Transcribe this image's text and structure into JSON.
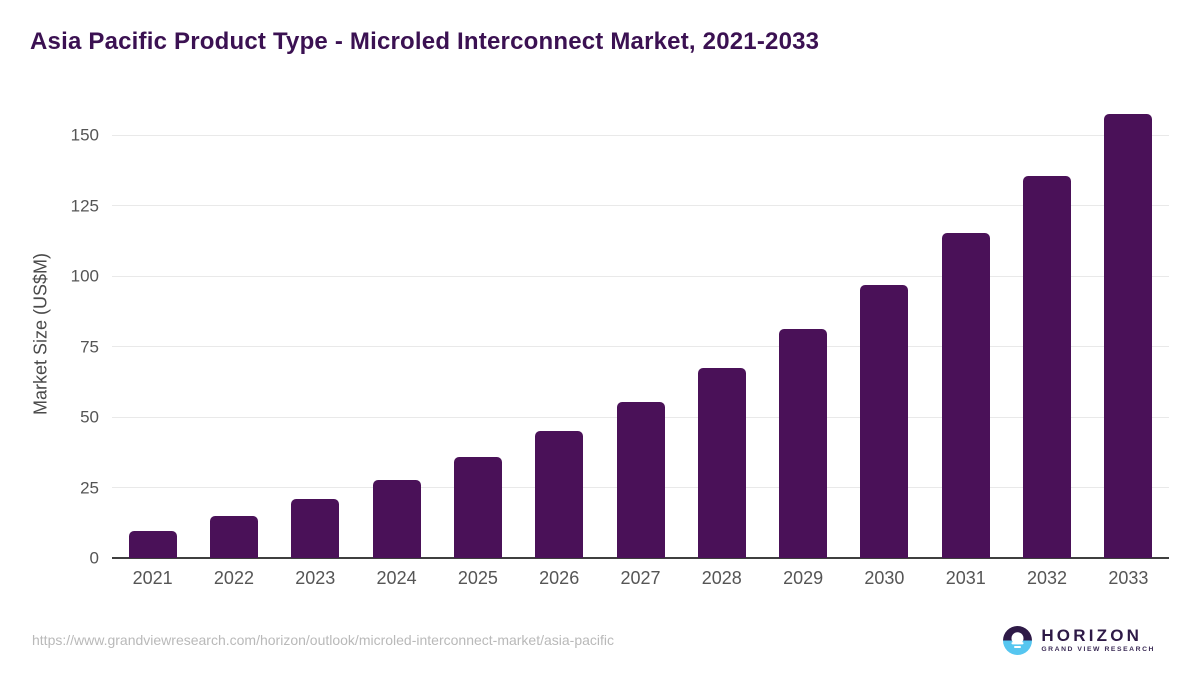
{
  "title": "Asia Pacific Product Type - Microled Interconnect Market, 2021-2033",
  "footer": {
    "source_url": "https://www.grandviewresearch.com/horizon/outlook/microled-interconnect-market/asia-pacific",
    "logo": {
      "name": "HORIZON",
      "subtitle": "GRAND VIEW RESEARCH"
    }
  },
  "colors": {
    "bar": "#4a1158",
    "title_text": "#3b1152",
    "axis_line": "#3f3f3f",
    "gridline": "#e9e9e9",
    "tick_text": "#555555",
    "url_text": "#b9b9b9",
    "logo_purple": "#2e1a47",
    "logo_blue": "#56c6f0"
  },
  "chart_data": {
    "type": "bar",
    "title": "Asia Pacific Product Type - Microled Interconnect Market, 2021-2033",
    "categories": [
      "2021",
      "2022",
      "2023",
      "2024",
      "2025",
      "2026",
      "2027",
      "2028",
      "2029",
      "2030",
      "2031",
      "2032",
      "2033"
    ],
    "values": [
      9.5,
      14.8,
      21.0,
      27.8,
      36.0,
      45.2,
      55.5,
      67.3,
      81.2,
      97.0,
      115.3,
      135.5,
      157.5
    ],
    "xlabel": "",
    "ylabel": "Market Size (US$M)",
    "yticks": [
      0,
      25,
      50,
      75,
      100,
      125,
      150
    ],
    "ylim": [
      0,
      159
    ],
    "grid": "horizontal",
    "legend": "none",
    "bar_color": "#4a1158"
  }
}
